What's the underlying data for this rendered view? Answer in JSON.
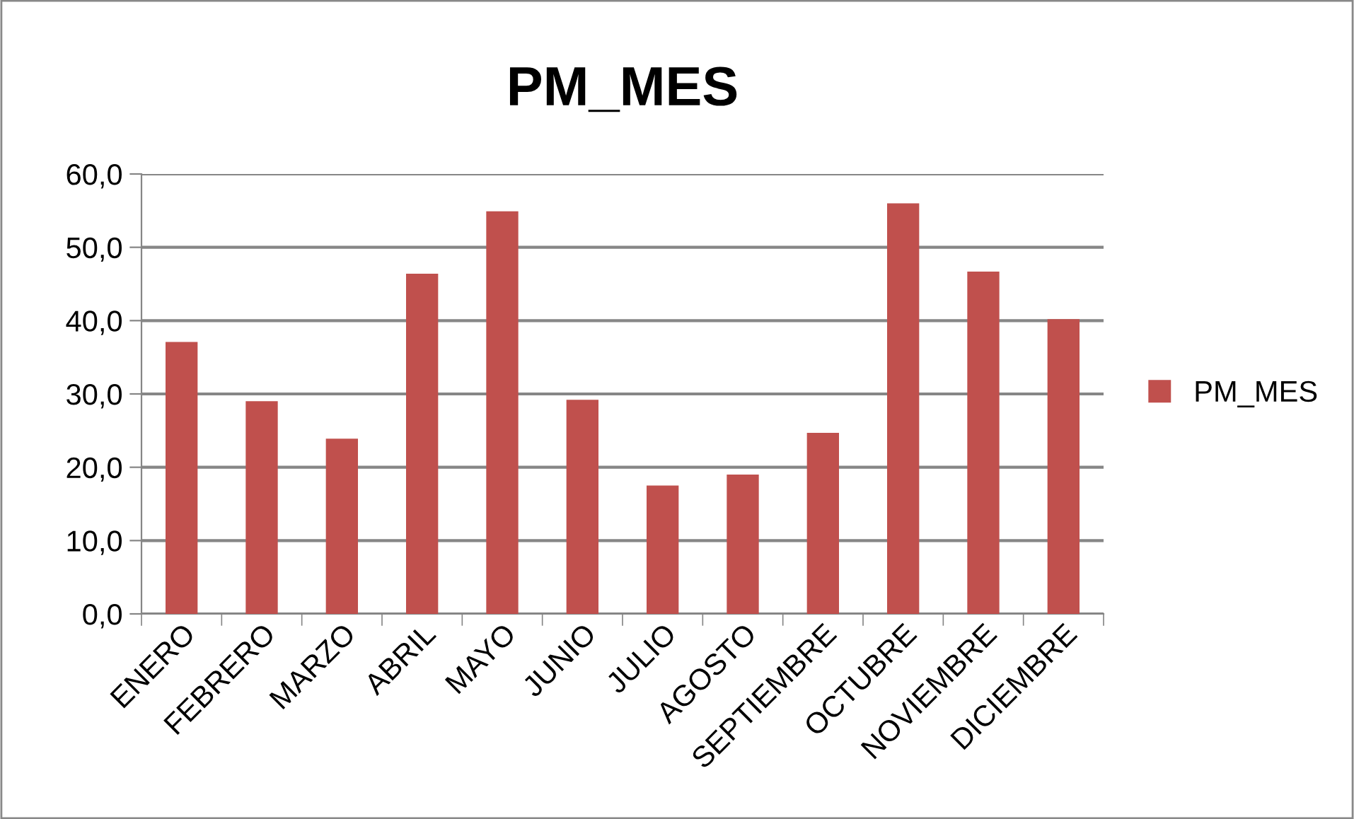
{
  "chart_data": {
    "type": "bar",
    "title": "PM_MES",
    "categories": [
      "ENERO",
      "FEBRERO",
      "MARZO",
      "ABRIL",
      "MAYO",
      "JUNIO",
      "JULIO",
      "AGOSTO",
      "SEPTIEMBRE",
      "OCTUBRE",
      "NOVIEMBRE",
      "DICIEMBRE"
    ],
    "series": [
      {
        "name": "PM_MES",
        "color": "#c0504d",
        "values": [
          37.1,
          29.0,
          23.9,
          46.4,
          54.9,
          29.2,
          17.5,
          19.0,
          24.7,
          56.0,
          46.7,
          40.2
        ]
      }
    ],
    "ylim": [
      0,
      60
    ],
    "yticks": [
      {
        "value": 0,
        "label": "0,0"
      },
      {
        "value": 10,
        "label": "10,0"
      },
      {
        "value": 20,
        "label": "20,0"
      },
      {
        "value": 30,
        "label": "30,0"
      },
      {
        "value": 40,
        "label": "40,0"
      },
      {
        "value": 50,
        "label": "50,0"
      },
      {
        "value": 60,
        "label": "60,0"
      }
    ],
    "grid": "y",
    "legend": "right"
  }
}
